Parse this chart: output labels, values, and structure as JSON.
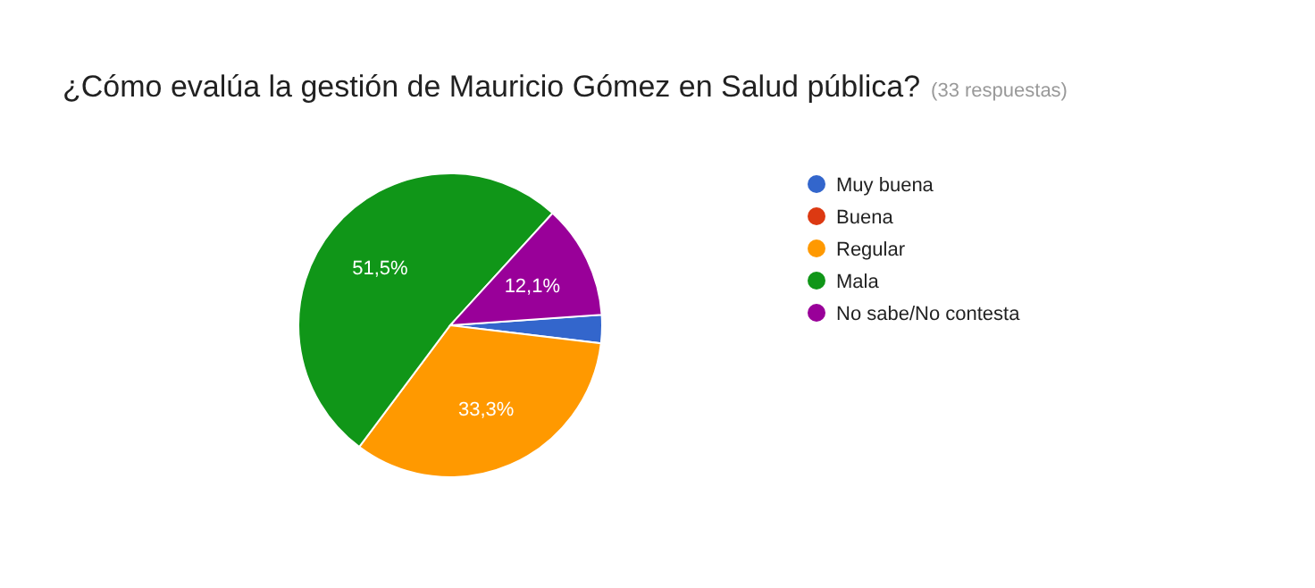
{
  "chart_data": {
    "type": "pie",
    "title": "¿Cómo evalúa la gestión de Mauricio Gómez en Salud pública?",
    "subtitle": "(33 respuestas)",
    "categories": [
      "Muy buena",
      "Buena",
      "Regular",
      "Mala",
      "No sabe/No contesta"
    ],
    "values": [
      3.0,
      0,
      33.3,
      51.5,
      12.1
    ],
    "colors": [
      "#3366cc",
      "#dc3912",
      "#ff9900",
      "#109618",
      "#990099"
    ],
    "value_labels": [
      null,
      null,
      "33,3%",
      "51,5%",
      "12,1%"
    ],
    "legend": "right"
  }
}
